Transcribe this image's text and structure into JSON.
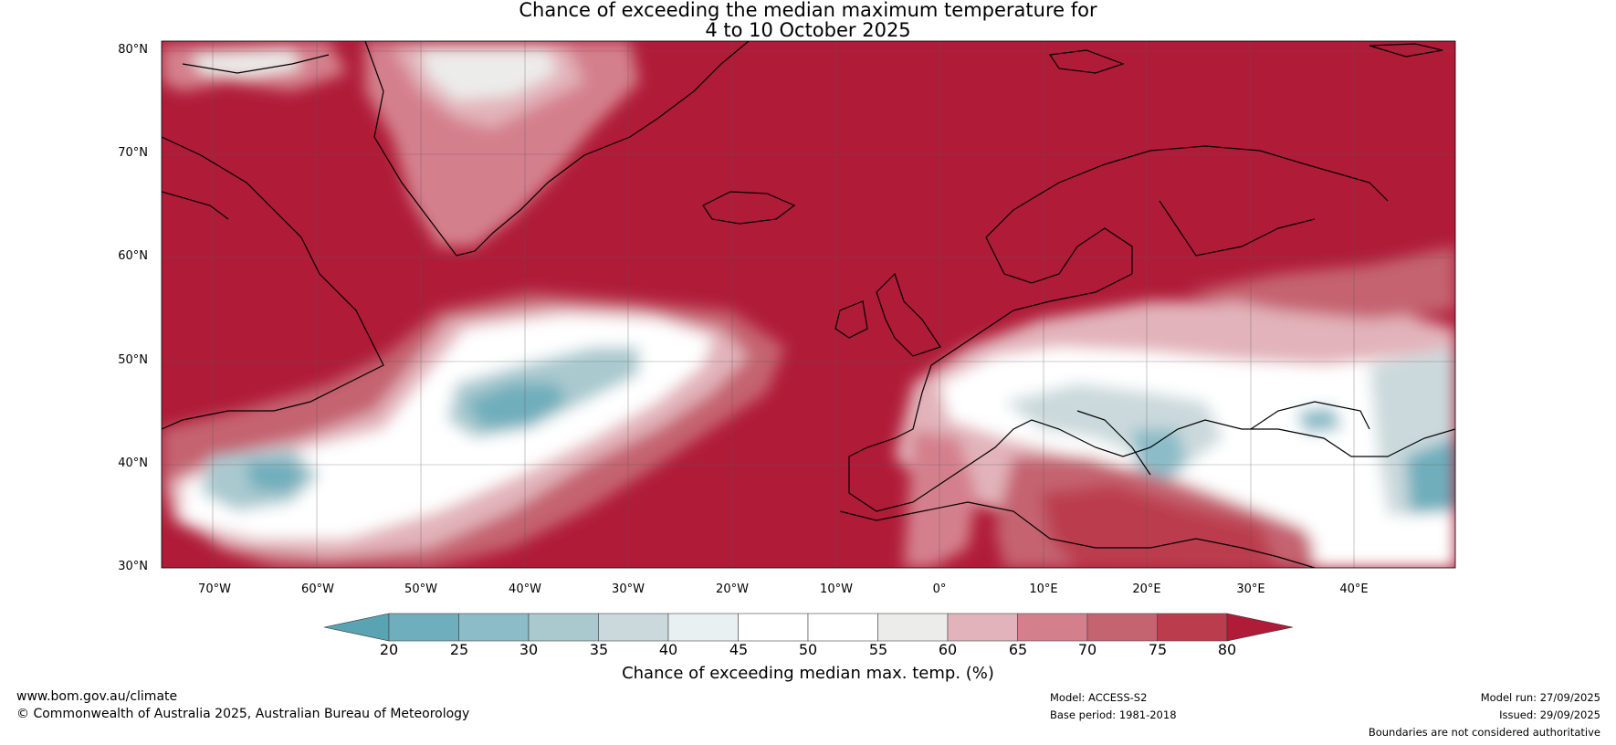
{
  "title": {
    "line1": "Chance of exceeding the median maximum temperature for",
    "line2": "4 to 10 October 2025"
  },
  "axes": {
    "lat_labels": [
      "80°N",
      "70°N",
      "60°N",
      "50°N",
      "40°N",
      "30°N"
    ],
    "lon_labels": [
      "70°W",
      "60°W",
      "50°W",
      "40°W",
      "30°W",
      "20°W",
      "10°W",
      "0°",
      "10°E",
      "20°E",
      "30°E",
      "40°E"
    ]
  },
  "colorbar": {
    "label": "Chance of exceeding median max. temp. (%)",
    "ticks": [
      "20",
      "25",
      "30",
      "35",
      "40",
      "45",
      "50",
      "55",
      "60",
      "65",
      "70",
      "75",
      "80"
    ],
    "colors": [
      "#5aa3b3",
      "#6faebc",
      "#8bbcc8",
      "#a9c9cf",
      "#cbd9dc",
      "#e9f0f2",
      "#ffffff",
      "#ffffff",
      "#ececea",
      "#e2b3ba",
      "#d4808c",
      "#c56471",
      "#bb3c4d",
      "#b01c38"
    ]
  },
  "footer": {
    "website": "www.bom.gov.au/climate",
    "copyright": "© Commonwealth of Australia 2025, Australian Bureau of Meteorology",
    "model": "Model: ACCESS-S2",
    "base_period": "Base period: 1981-2018",
    "model_run": "Model run: 27/09/2025",
    "issued": "Issued: 29/09/2025",
    "disclaimer": "Boundaries are not considered authoritative"
  }
}
